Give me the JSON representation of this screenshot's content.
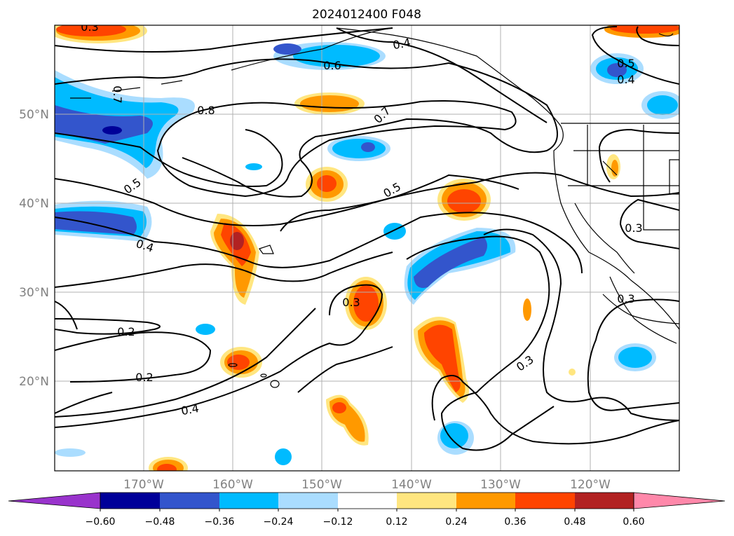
{
  "title": "2024012400 F048",
  "axes": {
    "lat_labels": [
      "20°N",
      "30°N",
      "40°N",
      "50°N"
    ],
    "lon_labels": [
      "170°W",
      "160°W",
      "150°W",
      "140°W",
      "130°W",
      "120°W"
    ]
  },
  "colorbar": {
    "tick_labels": [
      "−0.60",
      "−0.48",
      "−0.36",
      "−0.24",
      "−0.12",
      "0.12",
      "0.24",
      "0.36",
      "0.48",
      "0.60"
    ],
    "colors": [
      "#9933cc",
      "#000099",
      "#3355cc",
      "#00bbff",
      "#aaddff",
      "#ffffff",
      "#ffe680",
      "#ff9900",
      "#ff4400",
      "#b22222",
      "#ff88aa"
    ]
  },
  "contour_labels": [
    "0.3",
    "0.4",
    "0.6",
    "0.5",
    "0.4",
    "0.8",
    "0.7",
    "0.7",
    "0.5",
    "0.5",
    "0.4",
    "0.3",
    "0.3",
    "0.2",
    "0.3",
    "0.2",
    "0.4",
    "0.3"
  ],
  "colors": {
    "grid": "#b0b0b0",
    "contour": "#000000",
    "coast": "#000000"
  }
}
